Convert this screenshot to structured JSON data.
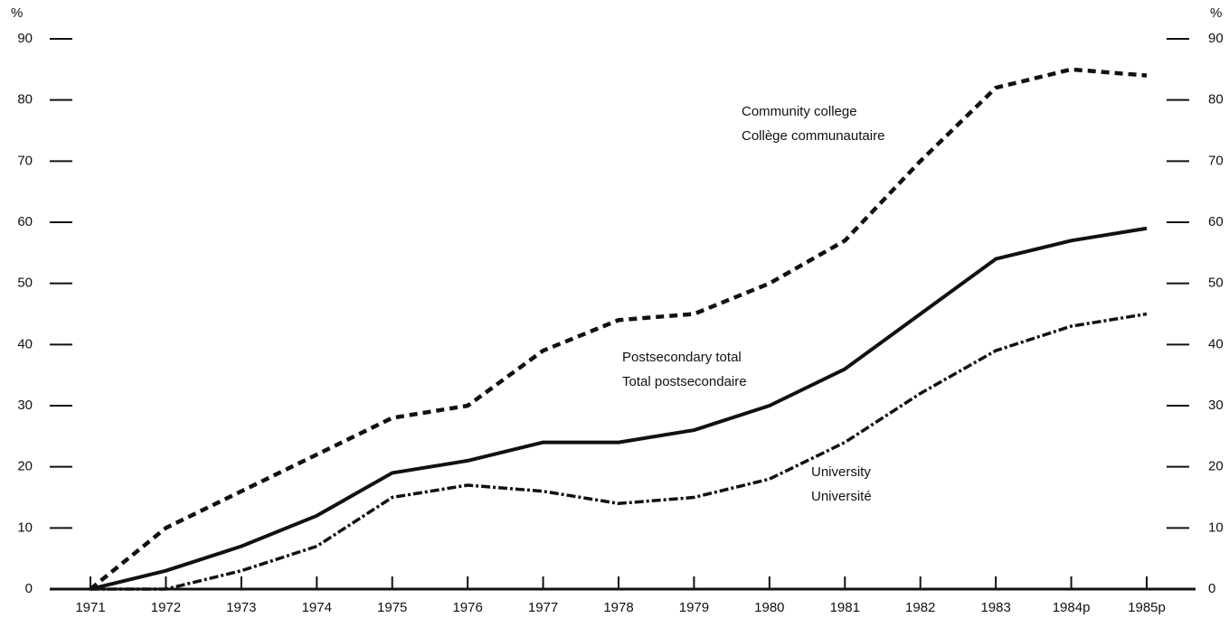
{
  "chart_data": {
    "type": "line",
    "y_label": "%",
    "y2_label": "%",
    "categories": [
      "1971",
      "1972",
      "1973",
      "1974",
      "1975",
      "1976",
      "1977",
      "1978",
      "1979",
      "1980",
      "1981",
      "1982",
      "1983",
      "1984p",
      "1985p"
    ],
    "series": [
      {
        "name": "Community college",
        "name_fr": "Collège communautaire",
        "color": "#111111",
        "style": "dashed",
        "values": [
          0,
          10,
          16,
          22,
          28,
          30,
          39,
          44,
          45,
          50,
          57,
          70,
          82,
          85,
          84
        ]
      },
      {
        "name": "Postsecondary total",
        "name_fr": "Total postsecondaire",
        "color": "#111111",
        "style": "solid",
        "values": [
          0,
          3,
          7,
          12,
          19,
          21,
          24,
          24,
          26,
          30,
          36,
          45,
          54,
          57,
          59
        ]
      },
      {
        "name": "University",
        "name_fr": "Université",
        "color": "#111111",
        "style": "dashdot",
        "values": [
          0,
          0,
          3,
          7,
          15,
          17,
          16,
          14,
          15,
          18,
          24,
          32,
          39,
          43,
          45
        ]
      }
    ],
    "ylim": [
      0,
      90
    ],
    "yticks": [
      0,
      10,
      20,
      30,
      40,
      50,
      60,
      70,
      80,
      90
    ],
    "y2lim": [
      0,
      90
    ],
    "y2ticks": [
      0,
      10,
      20,
      30,
      40,
      50,
      60,
      70,
      80,
      90
    ]
  }
}
